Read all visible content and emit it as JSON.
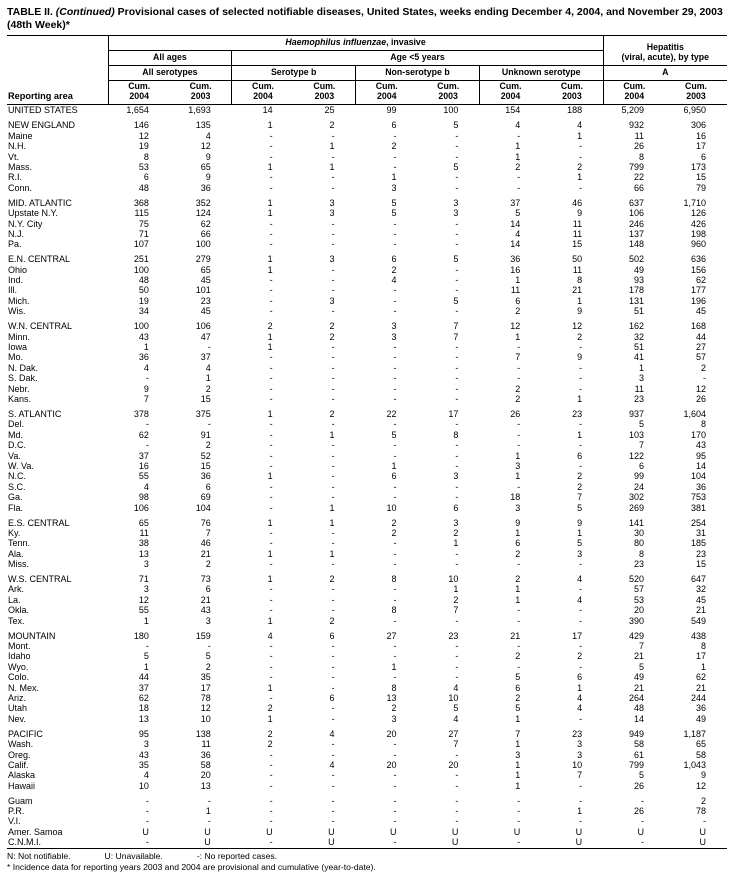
{
  "title": {
    "table_label": "TABLE II.",
    "continued": " (Continued)",
    "line1_rest": " Provisional cases of selected notifiable diseases, United States, weeks ending December 4, 2004, and November 29, 2003",
    "line2": "(48th Week)*"
  },
  "columns": {
    "reporting_area": "Reporting area",
    "haemophilus_italic": "Haemophilus influenzae",
    "haemophilus_rest": ", invasive",
    "hepatitis_line1": "Hepatitis",
    "hepatitis_line2": "(viral, acute), by type",
    "all_ages": "All ages",
    "age_under_5": "Age <5 years",
    "all_serotypes": "All serotypes",
    "serotype_b": "Serotype b",
    "non_serotype_b": "Non-serotype b",
    "unknown_serotype": "Unknown serotype",
    "hep_a": "A",
    "cum": "Cum.",
    "year_2004": "2004",
    "year_2003": "2003"
  },
  "rows": [
    {
      "area": "UNITED STATES",
      "values": [
        "1,654",
        "1,693",
        "14",
        "25",
        "99",
        "100",
        "154",
        "188",
        "5,209",
        "6,950"
      ]
    },
    {
      "area": "NEW ENGLAND",
      "gap_before": true,
      "values": [
        "146",
        "135",
        "1",
        "2",
        "6",
        "5",
        "4",
        "4",
        "932",
        "306"
      ]
    },
    {
      "area": "Maine",
      "values": [
        "12",
        "4",
        "-",
        "-",
        "-",
        "-",
        "-",
        "1",
        "11",
        "16"
      ]
    },
    {
      "area": "N.H.",
      "values": [
        "19",
        "12",
        "-",
        "1",
        "2",
        "-",
        "1",
        "-",
        "26",
        "17"
      ]
    },
    {
      "area": "Vt.",
      "values": [
        "8",
        "9",
        "-",
        "-",
        "-",
        "-",
        "1",
        "-",
        "8",
        "6"
      ]
    },
    {
      "area": "Mass.",
      "values": [
        "53",
        "65",
        "1",
        "1",
        "-",
        "5",
        "2",
        "2",
        "799",
        "173"
      ]
    },
    {
      "area": "R.I.",
      "values": [
        "6",
        "9",
        "-",
        "-",
        "1",
        "-",
        "-",
        "1",
        "22",
        "15"
      ]
    },
    {
      "area": "Conn.",
      "values": [
        "48",
        "36",
        "-",
        "-",
        "3",
        "-",
        "-",
        "-",
        "66",
        "79"
      ]
    },
    {
      "area": "MID. ATLANTIC",
      "gap_before": true,
      "values": [
        "368",
        "352",
        "1",
        "3",
        "5",
        "3",
        "37",
        "46",
        "637",
        "1,710"
      ]
    },
    {
      "area": "Upstate N.Y.",
      "values": [
        "115",
        "124",
        "1",
        "3",
        "5",
        "3",
        "5",
        "9",
        "106",
        "126"
      ]
    },
    {
      "area": "N.Y. City",
      "values": [
        "75",
        "62",
        "-",
        "-",
        "-",
        "-",
        "14",
        "11",
        "246",
        "426"
      ]
    },
    {
      "area": "N.J.",
      "values": [
        "71",
        "66",
        "-",
        "-",
        "-",
        "-",
        "4",
        "11",
        "137",
        "198"
      ]
    },
    {
      "area": "Pa.",
      "values": [
        "107",
        "100",
        "-",
        "-",
        "-",
        "-",
        "14",
        "15",
        "148",
        "960"
      ]
    },
    {
      "area": "E.N. CENTRAL",
      "gap_before": true,
      "values": [
        "251",
        "279",
        "1",
        "3",
        "6",
        "5",
        "36",
        "50",
        "502",
        "636"
      ]
    },
    {
      "area": "Ohio",
      "values": [
        "100",
        "65",
        "1",
        "-",
        "2",
        "-",
        "16",
        "11",
        "49",
        "156"
      ]
    },
    {
      "area": "Ind.",
      "values": [
        "48",
        "45",
        "-",
        "-",
        "4",
        "-",
        "1",
        "8",
        "93",
        "62"
      ]
    },
    {
      "area": "Ill.",
      "values": [
        "50",
        "101",
        "-",
        "-",
        "-",
        "-",
        "11",
        "21",
        "178",
        "177"
      ]
    },
    {
      "area": "Mich.",
      "values": [
        "19",
        "23",
        "-",
        "3",
        "-",
        "5",
        "6",
        "1",
        "131",
        "196"
      ]
    },
    {
      "area": "Wis.",
      "values": [
        "34",
        "45",
        "-",
        "-",
        "-",
        "-",
        "2",
        "9",
        "51",
        "45"
      ]
    },
    {
      "area": "W.N. CENTRAL",
      "gap_before": true,
      "values": [
        "100",
        "106",
        "2",
        "2",
        "3",
        "7",
        "12",
        "12",
        "162",
        "168"
      ]
    },
    {
      "area": "Minn.",
      "values": [
        "43",
        "47",
        "1",
        "2",
        "3",
        "7",
        "1",
        "2",
        "32",
        "44"
      ]
    },
    {
      "area": "Iowa",
      "values": [
        "1",
        "-",
        "1",
        "-",
        "-",
        "-",
        "-",
        "-",
        "51",
        "27"
      ]
    },
    {
      "area": "Mo.",
      "values": [
        "36",
        "37",
        "-",
        "-",
        "-",
        "-",
        "7",
        "9",
        "41",
        "57"
      ]
    },
    {
      "area": "N. Dak.",
      "values": [
        "4",
        "4",
        "-",
        "-",
        "-",
        "-",
        "-",
        "-",
        "1",
        "2"
      ]
    },
    {
      "area": "S. Dak.",
      "values": [
        "-",
        "1",
        "-",
        "-",
        "-",
        "-",
        "-",
        "-",
        "3",
        "-"
      ]
    },
    {
      "area": "Nebr.",
      "values": [
        "9",
        "2",
        "-",
        "-",
        "-",
        "-",
        "2",
        "-",
        "11",
        "12"
      ]
    },
    {
      "area": "Kans.",
      "values": [
        "7",
        "15",
        "-",
        "-",
        "-",
        "-",
        "2",
        "1",
        "23",
        "26"
      ]
    },
    {
      "area": "S. ATLANTIC",
      "gap_before": true,
      "values": [
        "378",
        "375",
        "1",
        "2",
        "22",
        "17",
        "26",
        "23",
        "937",
        "1,604"
      ]
    },
    {
      "area": "Del.",
      "values": [
        "-",
        "-",
        "-",
        "-",
        "-",
        "-",
        "-",
        "-",
        "5",
        "8"
      ]
    },
    {
      "area": "Md.",
      "values": [
        "62",
        "91",
        "-",
        "1",
        "5",
        "8",
        "-",
        "1",
        "103",
        "170"
      ]
    },
    {
      "area": "D.C.",
      "values": [
        "-",
        "2",
        "-",
        "-",
        "-",
        "-",
        "-",
        "-",
        "7",
        "43"
      ]
    },
    {
      "area": "Va.",
      "values": [
        "37",
        "52",
        "-",
        "-",
        "-",
        "-",
        "1",
        "6",
        "122",
        "95"
      ]
    },
    {
      "area": "W. Va.",
      "values": [
        "16",
        "15",
        "-",
        "-",
        "1",
        "-",
        "3",
        "-",
        "6",
        "14"
      ]
    },
    {
      "area": "N.C.",
      "values": [
        "55",
        "36",
        "1",
        "-",
        "6",
        "3",
        "1",
        "2",
        "99",
        "104"
      ]
    },
    {
      "area": "S.C.",
      "values": [
        "4",
        "6",
        "-",
        "-",
        "-",
        "-",
        "-",
        "2",
        "24",
        "36"
      ]
    },
    {
      "area": "Ga.",
      "values": [
        "98",
        "69",
        "-",
        "-",
        "-",
        "-",
        "18",
        "7",
        "302",
        "753"
      ]
    },
    {
      "area": "Fla.",
      "values": [
        "106",
        "104",
        "-",
        "1",
        "10",
        "6",
        "3",
        "5",
        "269",
        "381"
      ]
    },
    {
      "area": "E.S. CENTRAL",
      "gap_before": true,
      "values": [
        "65",
        "76",
        "1",
        "1",
        "2",
        "3",
        "9",
        "9",
        "141",
        "254"
      ]
    },
    {
      "area": "Ky.",
      "values": [
        "11",
        "7",
        "-",
        "-",
        "2",
        "2",
        "1",
        "1",
        "30",
        "31"
      ]
    },
    {
      "area": "Tenn.",
      "values": [
        "38",
        "46",
        "-",
        "-",
        "-",
        "1",
        "6",
        "5",
        "80",
        "185"
      ]
    },
    {
      "area": "Ala.",
      "values": [
        "13",
        "21",
        "1",
        "1",
        "-",
        "-",
        "2",
        "3",
        "8",
        "23"
      ]
    },
    {
      "area": "Miss.",
      "values": [
        "3",
        "2",
        "-",
        "-",
        "-",
        "-",
        "-",
        "-",
        "23",
        "15"
      ]
    },
    {
      "area": "W.S. CENTRAL",
      "gap_before": true,
      "values": [
        "71",
        "73",
        "1",
        "2",
        "8",
        "10",
        "2",
        "4",
        "520",
        "647"
      ]
    },
    {
      "area": "Ark.",
      "values": [
        "3",
        "6",
        "-",
        "-",
        "-",
        "1",
        "1",
        "-",
        "57",
        "32"
      ]
    },
    {
      "area": "La.",
      "values": [
        "12",
        "21",
        "-",
        "-",
        "-",
        "2",
        "1",
        "4",
        "53",
        "45"
      ]
    },
    {
      "area": "Okla.",
      "values": [
        "55",
        "43",
        "-",
        "-",
        "8",
        "7",
        "-",
        "-",
        "20",
        "21"
      ]
    },
    {
      "area": "Tex.",
      "values": [
        "1",
        "3",
        "1",
        "2",
        "-",
        "-",
        "-",
        "-",
        "390",
        "549"
      ]
    },
    {
      "area": "MOUNTAIN",
      "gap_before": true,
      "values": [
        "180",
        "159",
        "4",
        "6",
        "27",
        "23",
        "21",
        "17",
        "429",
        "438"
      ]
    },
    {
      "area": "Mont.",
      "values": [
        "-",
        "-",
        "-",
        "-",
        "-",
        "-",
        "-",
        "-",
        "7",
        "8"
      ]
    },
    {
      "area": "Idaho",
      "values": [
        "5",
        "5",
        "-",
        "-",
        "-",
        "-",
        "2",
        "2",
        "21",
        "17"
      ]
    },
    {
      "area": "Wyo.",
      "values": [
        "1",
        "2",
        "-",
        "-",
        "1",
        "-",
        "-",
        "-",
        "5",
        "1"
      ]
    },
    {
      "area": "Colo.",
      "values": [
        "44",
        "35",
        "-",
        "-",
        "-",
        "-",
        "5",
        "6",
        "49",
        "62"
      ]
    },
    {
      "area": "N. Mex.",
      "values": [
        "37",
        "17",
        "1",
        "-",
        "8",
        "4",
        "6",
        "1",
        "21",
        "21"
      ]
    },
    {
      "area": "Ariz.",
      "values": [
        "62",
        "78",
        "-",
        "6",
        "13",
        "10",
        "2",
        "4",
        "264",
        "244"
      ]
    },
    {
      "area": "Utah",
      "values": [
        "18",
        "12",
        "2",
        "-",
        "2",
        "5",
        "5",
        "4",
        "48",
        "36"
      ]
    },
    {
      "area": "Nev.",
      "values": [
        "13",
        "10",
        "1",
        "-",
        "3",
        "4",
        "1",
        "-",
        "14",
        "49"
      ]
    },
    {
      "area": "PACIFIC",
      "gap_before": true,
      "values": [
        "95",
        "138",
        "2",
        "4",
        "20",
        "27",
        "7",
        "23",
        "949",
        "1,187"
      ]
    },
    {
      "area": "Wash.",
      "values": [
        "3",
        "11",
        "2",
        "-",
        "-",
        "7",
        "1",
        "3",
        "58",
        "65"
      ]
    },
    {
      "area": "Oreg.",
      "values": [
        "43",
        "36",
        "-",
        "-",
        "-",
        "-",
        "3",
        "3",
        "61",
        "58"
      ]
    },
    {
      "area": "Calif.",
      "values": [
        "35",
        "58",
        "-",
        "4",
        "20",
        "20",
        "1",
        "10",
        "799",
        "1,043"
      ]
    },
    {
      "area": "Alaska",
      "values": [
        "4",
        "20",
        "-",
        "-",
        "-",
        "-",
        "1",
        "7",
        "5",
        "9"
      ]
    },
    {
      "area": "Hawaii",
      "values": [
        "10",
        "13",
        "-",
        "-",
        "-",
        "-",
        "1",
        "-",
        "26",
        "12"
      ]
    },
    {
      "area": "Guam",
      "gap_before": true,
      "values": [
        "-",
        "-",
        "-",
        "-",
        "-",
        "-",
        "-",
        "-",
        "-",
        "2"
      ]
    },
    {
      "area": "P.R.",
      "values": [
        "-",
        "1",
        "-",
        "-",
        "-",
        "-",
        "-",
        "1",
        "26",
        "78"
      ]
    },
    {
      "area": "V.I.",
      "values": [
        "-",
        "-",
        "-",
        "-",
        "-",
        "-",
        "-",
        "-",
        "-",
        "-"
      ]
    },
    {
      "area": "Amer. Samoa",
      "values": [
        "U",
        "U",
        "U",
        "U",
        "U",
        "U",
        "U",
        "U",
        "U",
        "U"
      ]
    },
    {
      "area": "C.N.M.I.",
      "values": [
        "-",
        "U",
        "-",
        "U",
        "-",
        "U",
        "-",
        "U",
        "-",
        "U"
      ]
    }
  ],
  "footnotes": {
    "legend": [
      "N: Not notifiable.",
      "U: Unavailable.",
      "-: No reported cases."
    ],
    "note": "* Incidence data for reporting years 2003 and 2004 are provisional and cumulative (year-to-date)."
  }
}
